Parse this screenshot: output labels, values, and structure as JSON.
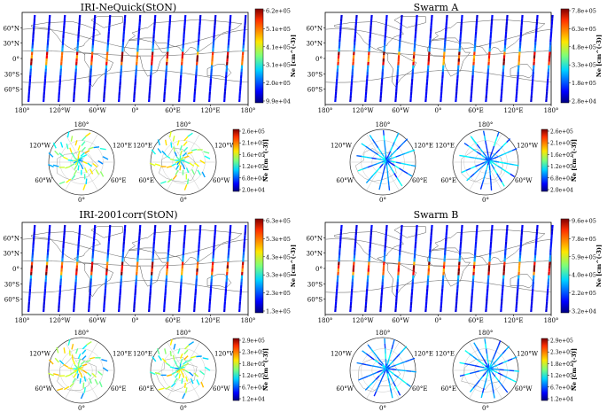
{
  "lat_ticks": [
    "60°N",
    "30°N",
    "0°",
    "30°S",
    "60°S"
  ],
  "lon_ticks": [
    "180°",
    "120°W",
    "60°W",
    "0°",
    "60°E",
    "120°E",
    "180°"
  ],
  "polar_labels": {
    "top": "180°",
    "left": "120°W",
    "right": "120°E",
    "bottom_left": "60°W",
    "bottom_right": "60°E",
    "bottom": "0°"
  },
  "polar_labels_south": {
    "top": "180°",
    "left": "120°E",
    "right": "120°W",
    "bottom_left": "60°E",
    "bottom_right": "60°W",
    "bottom": "0°"
  },
  "chart_data": [
    {
      "type": "map-tracks",
      "panel": "iri-neq-map",
      "title": "IRI-NeQuick(StON)",
      "colorbar_label": "Ne [cm^(-3)]",
      "colorbar_ticks": [
        "6.2e+05",
        "5.1e+05",
        "4.1e+05",
        "3.1e+05",
        "2.0e+05",
        "9.9e+04"
      ],
      "vmin": 99000,
      "vmax": 620000,
      "xlim": [
        -180,
        180
      ],
      "ylim": [
        -90,
        90
      ]
    },
    {
      "type": "map-tracks",
      "panel": "swarm-a-map",
      "title": "Swarm A",
      "colorbar_label": "Ne [cm^(-3)]",
      "colorbar_ticks": [
        "7.8e+05",
        "6.3e+05",
        "4.8e+05",
        "3.3e+05",
        "1.8e+05",
        "2.8e+04"
      ],
      "vmin": 28000,
      "vmax": 780000,
      "xlim": [
        -180,
        180
      ],
      "ylim": [
        -90,
        90
      ]
    },
    {
      "type": "map-tracks",
      "panel": "iri-2001-map",
      "title": "IRI-2001corr(StON)",
      "colorbar_label": "Ne [cm^(-3)]",
      "colorbar_ticks": [
        "6.3e+05",
        "5.3e+05",
        "4.3e+05",
        "3.3e+05",
        "2.3e+05",
        "1.3e+05"
      ],
      "vmin": 130000,
      "vmax": 630000,
      "xlim": [
        -180,
        180
      ],
      "ylim": [
        -90,
        90
      ]
    },
    {
      "type": "map-tracks",
      "panel": "swarm-b-map",
      "title": "Swarm B",
      "colorbar_label": "Ne [cm^(-3)]",
      "colorbar_ticks": [
        "9.6e+05",
        "7.8e+05",
        "5.9e+05",
        "4.0e+05",
        "2.2e+05",
        "3.2e+04"
      ],
      "vmin": 32000,
      "vmax": 960000,
      "xlim": [
        -180,
        180
      ],
      "ylim": [
        -90,
        90
      ]
    },
    {
      "type": "polar-tracks",
      "panel": "top-polar",
      "colorbar_label": "Ne [cm^(-3)]",
      "colorbar_ticks": [
        "2.6e+05",
        "2.1e+05",
        "1.6e+05",
        "1.2e+05",
        "6.8e+04",
        "2.0e+04"
      ],
      "vmin": 20000,
      "vmax": 260000
    },
    {
      "type": "polar-tracks",
      "panel": "top-right-polar",
      "colorbar_label": "Ne [cm^(-3)]",
      "colorbar_ticks": [
        "2.6e+05",
        "2.1e+05",
        "1.6e+05",
        "1.2e+05",
        "6.8e+04",
        "2.0e+04"
      ],
      "vmin": 20000,
      "vmax": 260000
    },
    {
      "type": "polar-tracks",
      "panel": "bottom-polar",
      "colorbar_label": "Ne [cm^(-3)]",
      "colorbar_ticks": [
        "2.9e+05",
        "2.3e+05",
        "1.8e+05",
        "1.2e+05",
        "6.7e+04",
        "1.2e+04"
      ],
      "vmin": 12000,
      "vmax": 290000
    },
    {
      "type": "polar-tracks",
      "panel": "bottom-right-polar",
      "colorbar_label": "Ne [cm^(-3)]",
      "colorbar_ticks": [
        "2.9e+05",
        "2.3e+05",
        "1.8e+05",
        "1.2e+05",
        "6.7e+04",
        "1.2e+04"
      ],
      "vmin": 12000,
      "vmax": 290000
    }
  ]
}
